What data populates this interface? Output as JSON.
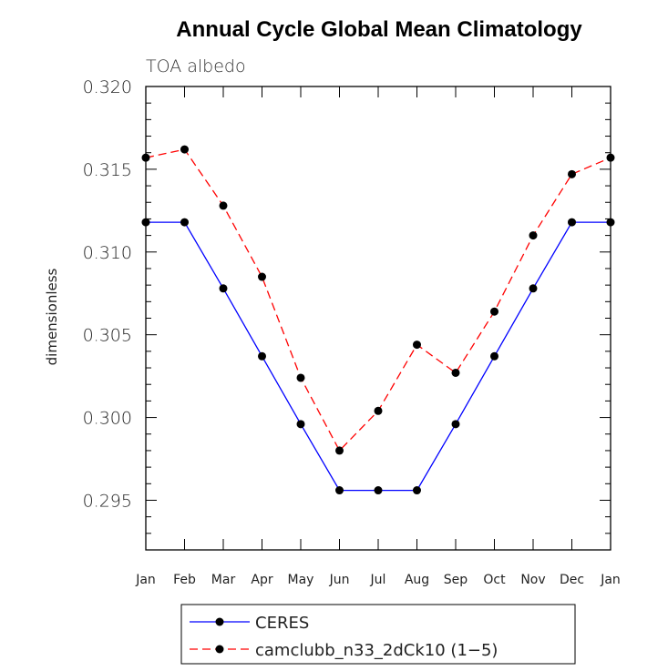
{
  "chart_data": {
    "type": "line",
    "title": "Annual Cycle Global Mean Climatology",
    "subtitle": "TOA albedo",
    "xlabel": "",
    "ylabel": "dimensionless",
    "categories": [
      "Jan",
      "Feb",
      "Mar",
      "Apr",
      "May",
      "Jun",
      "Jul",
      "Aug",
      "Sep",
      "Oct",
      "Nov",
      "Dec",
      "Jan"
    ],
    "ylim": [
      0.292,
      0.32
    ],
    "yticks": [
      "0.295",
      "0.300",
      "0.305",
      "0.310",
      "0.315",
      "0.320"
    ],
    "ytick_values": [
      0.295,
      0.3,
      0.305,
      0.31,
      0.315,
      0.32
    ],
    "series": [
      {
        "name": "CERES",
        "color": "#0000ff",
        "dash": "solid",
        "values": [
          0.3118,
          0.3118,
          0.3078,
          0.3037,
          0.2996,
          0.2956,
          0.2956,
          0.2956,
          0.2996,
          0.3037,
          0.3078,
          0.3118,
          0.3118
        ]
      },
      {
        "name": "camclubb_n33_2dCk10 (1−5)",
        "color": "#ff0000",
        "dash": "dashed",
        "values": [
          0.3157,
          0.3162,
          0.3128,
          0.3085,
          0.3024,
          0.298,
          0.3004,
          0.3044,
          0.3027,
          0.3064,
          0.311,
          0.3147,
          0.3157
        ]
      }
    ],
    "legend_position": "bottom"
  }
}
